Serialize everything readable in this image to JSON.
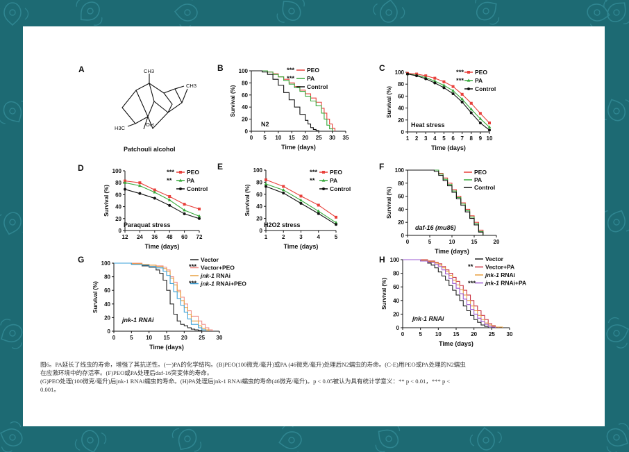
{
  "colors": {
    "bg": "#1d6a73",
    "card": "#ffffff",
    "peo": "#e8403b",
    "pa": "#37a93b",
    "control": "#111111",
    "vector": "#222222",
    "vector_peo": "#f08c86",
    "jnk1": "#e8a040",
    "jnk1_peo": "#3aa0d8",
    "vector_pa": "#c93040",
    "jnk1_pa": "#9b59d0"
  },
  "panelA": {
    "letter": "A",
    "name": "Patchouli alcohol",
    "ch3_top": "CH3",
    "ch3_right": "CH3",
    "h3c": "H3C",
    "oh": "OH"
  },
  "caption": {
    "line1": "图6。PA延长了线虫的寿命，增强了其抗逆性。(一)PA的化学结构。(B)PEO(100微克/毫升)或PA (46微克/毫升)处理后N2蠕虫的寿命。(C-E)用PEO或PA处理的N2蠕虫",
    "line2": "在应激环境中的存活率。(F)PEO或PA处理后daf-16突变体的寿命。",
    "line3": "(G)PEO处理(100微克/毫升)后jnk-1 RNAi蠕虫的寿命。(H)PA处理后jnk-1 RNAi蠕虫的寿命(46微克/毫升)。p < 0.05被认为具有统计学意义：** p < 0.01，*** p <",
    "line4": "0.001。"
  },
  "chart_data": [
    {
      "panel": "B",
      "type": "line",
      "step": true,
      "title": "N2",
      "xlabel": "Time (days)",
      "ylabel": "Survival (%)",
      "xlim": [
        0,
        35
      ],
      "ylim": [
        0,
        100
      ],
      "xticks": [
        0,
        5,
        10,
        15,
        20,
        25,
        30,
        35
      ],
      "yticks": [
        0,
        20,
        40,
        60,
        80,
        100
      ],
      "legend": [
        "PEO",
        "PA",
        "Control"
      ],
      "stars": [
        "***",
        "***"
      ],
      "series": [
        {
          "name": "PEO",
          "color": "#e8403b",
          "x": [
            0,
            4,
            6,
            8,
            10,
            12,
            14,
            16,
            18,
            20,
            22,
            24,
            26,
            27,
            28,
            29,
            30,
            31
          ],
          "y": [
            100,
            100,
            98,
            95,
            90,
            86,
            80,
            74,
            68,
            62,
            55,
            48,
            38,
            30,
            20,
            12,
            5,
            0
          ]
        },
        {
          "name": "PA",
          "color": "#37a93b",
          "x": [
            0,
            4,
            6,
            8,
            10,
            12,
            14,
            16,
            18,
            20,
            22,
            24,
            26,
            27,
            28,
            29,
            30
          ],
          "y": [
            100,
            100,
            98,
            94,
            90,
            84,
            78,
            72,
            66,
            58,
            50,
            42,
            30,
            20,
            10,
            4,
            0
          ]
        },
        {
          "name": "Control",
          "color": "#111111",
          "x": [
            0,
            4,
            6,
            8,
            10,
            12,
            14,
            16,
            18,
            20,
            21,
            22,
            23,
            24,
            25
          ],
          "y": [
            100,
            98,
            94,
            86,
            76,
            64,
            52,
            40,
            28,
            18,
            12,
            6,
            3,
            1,
            0
          ]
        }
      ]
    },
    {
      "panel": "C",
      "type": "line",
      "title": "Heat stress",
      "xlabel": "Time (days)",
      "ylabel": "Survival (%)",
      "xlim": [
        1,
        10
      ],
      "ylim": [
        0,
        100
      ],
      "xticks": [
        1,
        2,
        3,
        4,
        5,
        6,
        7,
        8,
        9,
        10
      ],
      "yticks": [
        0,
        20,
        40,
        60,
        80,
        100
      ],
      "legend": [
        "PEO",
        "PA",
        "Control"
      ],
      "stars": [
        "***",
        "***"
      ],
      "series": [
        {
          "name": "PEO",
          "color": "#e8403b",
          "x": [
            1,
            2,
            3,
            4,
            5,
            6,
            7,
            8,
            9,
            10
          ],
          "y": [
            98,
            97,
            94,
            90,
            84,
            76,
            63,
            48,
            31,
            15
          ]
        },
        {
          "name": "PA",
          "color": "#37a93b",
          "x": [
            1,
            2,
            3,
            4,
            5,
            6,
            7,
            8,
            9,
            10
          ],
          "y": [
            97,
            95,
            91,
            85,
            78,
            69,
            55,
            38,
            22,
            8
          ]
        },
        {
          "name": "Control",
          "color": "#111111",
          "x": [
            1,
            2,
            3,
            4,
            5,
            6,
            7,
            8,
            9,
            10
          ],
          "y": [
            97,
            94,
            89,
            82,
            74,
            64,
            50,
            32,
            15,
            3
          ]
        }
      ]
    },
    {
      "panel": "D",
      "type": "line",
      "title": "Paraquat stress",
      "xlabel": "Time (days)",
      "ylabel": "Survival (%)",
      "xlim": [
        12,
        72
      ],
      "ylim": [
        0,
        100
      ],
      "xticks": [
        12,
        24,
        36,
        48,
        60,
        72
      ],
      "yticks": [
        0,
        20,
        40,
        60,
        80,
        100
      ],
      "legend": [
        "PEO",
        "PA",
        "Control"
      ],
      "stars": [
        "***",
        "**"
      ],
      "series": [
        {
          "name": "PEO",
          "color": "#e8403b",
          "x": [
            12,
            24,
            36,
            48,
            60,
            72
          ],
          "y": [
            83,
            80,
            68,
            57,
            44,
            36
          ]
        },
        {
          "name": "PA",
          "color": "#37a93b",
          "x": [
            12,
            24,
            36,
            48,
            60,
            72
          ],
          "y": [
            80,
            75,
            64,
            51,
            34,
            24
          ]
        },
        {
          "name": "Control",
          "color": "#111111",
          "x": [
            12,
            24,
            36,
            48,
            60,
            72
          ],
          "y": [
            69,
            62,
            54,
            42,
            28,
            20
          ]
        }
      ]
    },
    {
      "panel": "E",
      "type": "line",
      "title": "H2O2 stress",
      "xlabel": "Time (days)",
      "ylabel": "Survival (%)",
      "xlim": [
        1,
        5
      ],
      "ylim": [
        0,
        100
      ],
      "xticks": [
        1,
        2,
        3,
        4,
        5
      ],
      "yticks": [
        0,
        20,
        40,
        60,
        80,
        100
      ],
      "legend": [
        "PEO",
        "PA",
        "Control"
      ],
      "stars": [
        "***",
        "**"
      ],
      "series": [
        {
          "name": "PEO",
          "color": "#e8403b",
          "x": [
            1,
            2,
            3,
            4,
            5
          ],
          "y": [
            84,
            73,
            57,
            42,
            22
          ]
        },
        {
          "name": "PA",
          "color": "#37a93b",
          "x": [
            1,
            2,
            3,
            4,
            5
          ],
          "y": [
            77,
            67,
            50,
            32,
            13
          ]
        },
        {
          "name": "Control",
          "color": "#111111",
          "x": [
            1,
            2,
            3,
            4,
            5
          ],
          "y": [
            73,
            62,
            45,
            28,
            10
          ]
        }
      ]
    },
    {
      "panel": "F",
      "type": "line",
      "step": true,
      "title": "daf-16 (mu86)",
      "xlabel": "Time (days)",
      "ylabel": "Survival (%)",
      "xlim": [
        0,
        20
      ],
      "ylim": [
        0,
        100
      ],
      "xticks": [
        0,
        5,
        10,
        15,
        20
      ],
      "yticks": [
        0,
        20,
        40,
        60,
        80,
        100
      ],
      "legend": [
        "PEO",
        "PA",
        "Control"
      ],
      "stars": [],
      "series": [
        {
          "name": "PEO",
          "color": "#e8403b",
          "x": [
            0,
            6,
            7,
            8,
            9,
            10,
            11,
            12,
            13,
            14,
            15,
            16,
            17
          ],
          "y": [
            100,
            100,
            95,
            88,
            80,
            70,
            60,
            50,
            40,
            30,
            20,
            8,
            0
          ]
        },
        {
          "name": "PA",
          "color": "#37a93b",
          "x": [
            0,
            6,
            7,
            8,
            9,
            10,
            11,
            12,
            13,
            14,
            15,
            16,
            17
          ],
          "y": [
            100,
            100,
            94,
            86,
            78,
            68,
            58,
            48,
            38,
            28,
            18,
            6,
            0
          ]
        },
        {
          "name": "Control",
          "color": "#111111",
          "x": [
            0,
            6,
            7,
            8,
            9,
            10,
            11,
            12,
            13,
            14,
            15,
            16,
            17
          ],
          "y": [
            100,
            98,
            92,
            84,
            76,
            66,
            56,
            46,
            36,
            26,
            16,
            5,
            0
          ]
        }
      ]
    },
    {
      "panel": "G",
      "type": "line",
      "step": true,
      "title": "jnk-1 RNAi",
      "xlabel": "Time (days)",
      "ylabel": "Survival (%)",
      "xlim": [
        0,
        30
      ],
      "ylim": [
        0,
        100
      ],
      "xticks": [
        0,
        5,
        10,
        15,
        20,
        25,
        30
      ],
      "yticks": [
        0,
        20,
        40,
        60,
        80,
        100
      ],
      "legend": [
        "Vector",
        "Vector+PEO",
        "jnk-1 RNAi",
        "jnk-1 RNAi+PEO"
      ],
      "stars": [
        "***",
        "***"
      ],
      "series": [
        {
          "name": "Vector",
          "color": "#222222",
          "x": [
            0,
            5,
            8,
            10,
            12,
            13,
            14,
            15,
            16,
            17,
            18,
            19,
            20,
            21,
            22,
            23,
            24,
            25
          ],
          "y": [
            100,
            98,
            96,
            94,
            90,
            85,
            75,
            60,
            40,
            25,
            15,
            10,
            8,
            5,
            3,
            2,
            1,
            0
          ]
        },
        {
          "name": "Vector+PEO",
          "color": "#f08c86",
          "x": [
            0,
            5,
            8,
            10,
            12,
            14,
            15,
            16,
            17,
            18,
            19,
            20,
            21,
            22,
            24,
            25,
            26,
            27,
            28
          ],
          "y": [
            100,
            100,
            98,
            97,
            96,
            94,
            90,
            80,
            72,
            60,
            50,
            40,
            30,
            22,
            15,
            10,
            5,
            2,
            0
          ]
        },
        {
          "name": "jnk-1 RNAi",
          "color": "#e8a040",
          "x": [
            0,
            5,
            8,
            10,
            12,
            14,
            15,
            16,
            17,
            18,
            19,
            20,
            21,
            22,
            24,
            25,
            26,
            27
          ],
          "y": [
            100,
            99,
            98,
            97,
            95,
            92,
            88,
            78,
            68,
            58,
            45,
            35,
            25,
            15,
            8,
            4,
            2,
            0
          ]
        },
        {
          "name": "jnk-1 RNAi+PEO",
          "color": "#3aa0d8",
          "x": [
            0,
            5,
            8,
            10,
            12,
            14,
            15,
            16,
            17,
            18,
            19,
            20,
            21,
            22,
            24,
            25,
            26
          ],
          "y": [
            100,
            98,
            97,
            95,
            93,
            88,
            82,
            70,
            58,
            48,
            38,
            28,
            18,
            10,
            5,
            2,
            0
          ]
        }
      ]
    },
    {
      "panel": "H",
      "type": "line",
      "step": true,
      "title": "jnk-1 RNAi",
      "xlabel": "Time (days)",
      "ylabel": "Survival (%)",
      "xlim": [
        0,
        30
      ],
      "ylim": [
        0,
        100
      ],
      "xticks": [
        0,
        5,
        10,
        15,
        20,
        25,
        30
      ],
      "yticks": [
        0,
        20,
        40,
        60,
        80,
        100
      ],
      "legend": [
        "Vector",
        "Vector+PA",
        "jnk-1 RNAi",
        "jnk-1 RNAi+PA"
      ],
      "stars": [
        "**",
        "***"
      ],
      "series": [
        {
          "name": "Vector",
          "color": "#222222",
          "x": [
            0,
            5,
            7,
            8,
            9,
            10,
            11,
            12,
            13,
            14,
            15,
            16,
            17,
            18,
            19,
            20,
            21,
            22,
            23,
            24
          ],
          "y": [
            100,
            98,
            95,
            92,
            88,
            82,
            76,
            70,
            62,
            55,
            48,
            40,
            32,
            25,
            18,
            12,
            8,
            4,
            2,
            0
          ]
        },
        {
          "name": "Vector+PA",
          "color": "#c93040",
          "x": [
            0,
            5,
            7,
            9,
            10,
            11,
            12,
            13,
            14,
            15,
            16,
            17,
            18,
            19,
            20,
            21,
            22,
            23,
            24,
            25,
            26,
            27
          ],
          "y": [
            100,
            100,
            98,
            96,
            94,
            90,
            85,
            80,
            74,
            68,
            62,
            55,
            48,
            40,
            32,
            25,
            18,
            12,
            6,
            3,
            1,
            0
          ]
        },
        {
          "name": "jnk-1 RNAi",
          "color": "#e8a040",
          "x": [
            0,
            5,
            7,
            9,
            10,
            11,
            12,
            13,
            14,
            15,
            16,
            17,
            18,
            19,
            20,
            21,
            22,
            23,
            24,
            25,
            26,
            28
          ],
          "y": [
            100,
            99,
            97,
            95,
            92,
            88,
            83,
            77,
            70,
            63,
            56,
            48,
            40,
            32,
            25,
            18,
            12,
            7,
            4,
            2,
            1,
            0
          ]
        },
        {
          "name": "jnk-1 RNAi+PA",
          "color": "#9b59d0",
          "x": [
            0,
            5,
            7,
            9,
            10,
            11,
            12,
            13,
            14,
            15,
            16,
            17,
            18,
            19,
            20,
            21,
            22,
            23,
            24,
            25,
            26
          ],
          "y": [
            100,
            98,
            96,
            93,
            90,
            85,
            79,
            72,
            65,
            58,
            50,
            42,
            34,
            27,
            20,
            14,
            9,
            5,
            2,
            1,
            0
          ]
        }
      ]
    }
  ]
}
